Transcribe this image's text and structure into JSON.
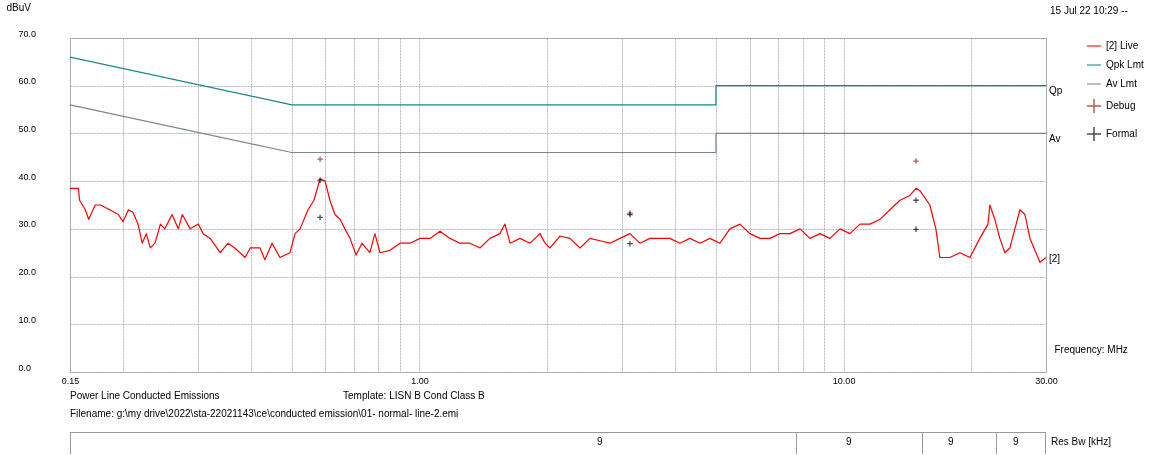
{
  "chart_data": {
    "type": "line",
    "xlabel": "Frequency: MHz",
    "ylabel": "dBuV",
    "log": "x",
    "xlim": [
      0.15,
      30
    ],
    "ylim": [
      0,
      70
    ],
    "xticks": [
      {
        "value": 0.15,
        "label": "0.15"
      },
      {
        "value": 0.2,
        "label": null
      },
      {
        "value": 0.3,
        "label": null
      },
      {
        "value": 0.4,
        "label": null
      },
      {
        "value": 0.5,
        "label": null
      },
      {
        "value": 0.6,
        "label": null
      },
      {
        "value": 0.7,
        "label": null
      },
      {
        "value": 0.8,
        "label": null
      },
      {
        "value": 0.9,
        "label": null
      },
      {
        "value": 1,
        "label": "1.00"
      },
      {
        "value": 2,
        "label": null
      },
      {
        "value": 3,
        "label": null
      },
      {
        "value": 4,
        "label": null
      },
      {
        "value": 5,
        "label": null
      },
      {
        "value": 6,
        "label": null
      },
      {
        "value": 7,
        "label": null
      },
      {
        "value": 8,
        "label": null
      },
      {
        "value": 9,
        "label": null
      },
      {
        "value": 10,
        "label": "10.00"
      },
      {
        "value": 20,
        "label": null
      },
      {
        "value": 30,
        "label": "30.00"
      }
    ],
    "yticks": [
      {
        "value": 0,
        "label": "0.0"
      },
      {
        "value": 10,
        "label": "10.0"
      },
      {
        "value": 20,
        "label": "20.0"
      },
      {
        "value": 30,
        "label": "30.0"
      },
      {
        "value": 40,
        "label": "40.0"
      },
      {
        "value": 50,
        "label": "50.0"
      },
      {
        "value": 60,
        "label": "60.0"
      },
      {
        "value": 70,
        "label": "70.0"
      }
    ],
    "grid": true,
    "legend": "top right",
    "series": [
      {
        "name": "[2] Live",
        "color": "#ff0000",
        "x": [
          0.15,
          0.157,
          0.158,
          0.163,
          0.166,
          0.172,
          0.177,
          0.186,
          0.195,
          0.2,
          0.206,
          0.211,
          0.217,
          0.222,
          0.227,
          0.232,
          0.238,
          0.245,
          0.251,
          0.261,
          0.27,
          0.276,
          0.288,
          0.301,
          0.309,
          0.321,
          0.339,
          0.354,
          0.367,
          0.388,
          0.399,
          0.421,
          0.432,
          0.449,
          0.469,
          0.495,
          0.509,
          0.523,
          0.546,
          0.564,
          0.583,
          0.599,
          0.615,
          0.632,
          0.65,
          0.667,
          0.686,
          0.709,
          0.732,
          0.764,
          0.785,
          0.807,
          0.852,
          0.9,
          0.95,
          1.003,
          1.059,
          1.118,
          1.18,
          1.246,
          1.315,
          1.389,
          1.466,
          1.548,
          1.59,
          1.635,
          1.726,
          1.822,
          1.924,
          1.977,
          2.031,
          2.144,
          2.264,
          2.39,
          2.523,
          2.664,
          2.812,
          2.97,
          3.135,
          3.309,
          3.494,
          3.689,
          3.895,
          4.112,
          4.341,
          4.584,
          4.84,
          5.11,
          5.394,
          5.695,
          6.013,
          6.349,
          6.703,
          7.077,
          7.473,
          7.89,
          8.33,
          8.794,
          9.285,
          9.803,
          10.35,
          10.93,
          11.54,
          12.18,
          12.86,
          13.58,
          14.33,
          14.81,
          15.13,
          15.97,
          16.5,
          16.86,
          17.8,
          18.8,
          19.85,
          20.95,
          21.89,
          22.12,
          22.72,
          23.35,
          24.0,
          24.66,
          26.04,
          26.76,
          27.5,
          29.03,
          30
        ],
        "values": [
          38.5,
          38.5,
          36,
          34,
          32,
          35,
          35,
          34,
          33,
          31.5,
          34,
          33.5,
          31,
          27,
          29,
          26,
          27,
          31,
          30,
          33,
          30,
          33,
          30,
          31,
          29,
          28,
          25,
          27,
          26,
          24,
          26,
          26,
          23.5,
          27,
          24,
          25,
          29,
          30,
          34,
          36,
          40.5,
          40,
          36,
          33,
          32,
          30,
          28,
          24.5,
          27,
          25,
          29,
          25,
          25.5,
          27,
          27,
          28,
          28,
          29.5,
          28,
          27,
          27,
          26,
          28,
          29,
          31,
          27,
          28,
          27,
          29,
          27,
          26,
          28.5,
          28,
          26,
          28,
          27.5,
          27,
          28,
          29,
          27,
          28,
          28,
          28,
          27,
          28,
          27,
          28,
          27,
          30,
          31,
          29,
          28,
          28,
          29,
          29,
          30,
          28,
          29,
          28,
          30,
          29,
          31,
          31,
          32,
          34,
          36,
          37,
          38.5,
          38,
          35,
          30,
          24,
          24,
          25,
          24,
          28,
          31,
          35,
          32,
          28,
          25,
          26,
          34,
          33,
          28,
          23,
          24
        ]
      },
      {
        "name": "Qpk Lmt",
        "color": "#138a84",
        "x": [
          0.15,
          0.5,
          5,
          5,
          30
        ],
        "values": [
          66,
          56,
          56,
          60,
          60
        ]
      },
      {
        "name": "Av Lmt",
        "color": "#7a8a80",
        "x": [
          0.15,
          0.5,
          5,
          5,
          30
        ],
        "values": [
          56,
          46,
          46,
          50,
          50
        ]
      },
      {
        "name": "Debug",
        "type": "scatter",
        "marker": "cross",
        "color": "#a01010",
        "x": [
          0.583,
          3.135,
          14.81
        ],
        "values": [
          44.6,
          33.3,
          44.2
        ]
      },
      {
        "name": "Formal",
        "type": "scatter",
        "marker": "cross",
        "color": "#000000",
        "x": [
          0.583,
          0.583,
          3.135,
          3.135,
          14.81,
          14.81
        ],
        "values": [
          40.2,
          32.4,
          33.0,
          26.9,
          36.0,
          29.9
        ]
      }
    ],
    "annotations": [
      "Qp",
      "Av",
      "[2]",
      "15 Jul 22 10:29 --",
      "Power Line Conducted Emissions",
      "Template: LISN B Cond Class B",
      "Filename: g:\\my drive\\2022\\sta-22021143\\ce\\conducted emission\\01- normal- line-2.emi",
      "9",
      "9",
      "9",
      "9",
      "Res Bw [kHz]"
    ]
  }
}
